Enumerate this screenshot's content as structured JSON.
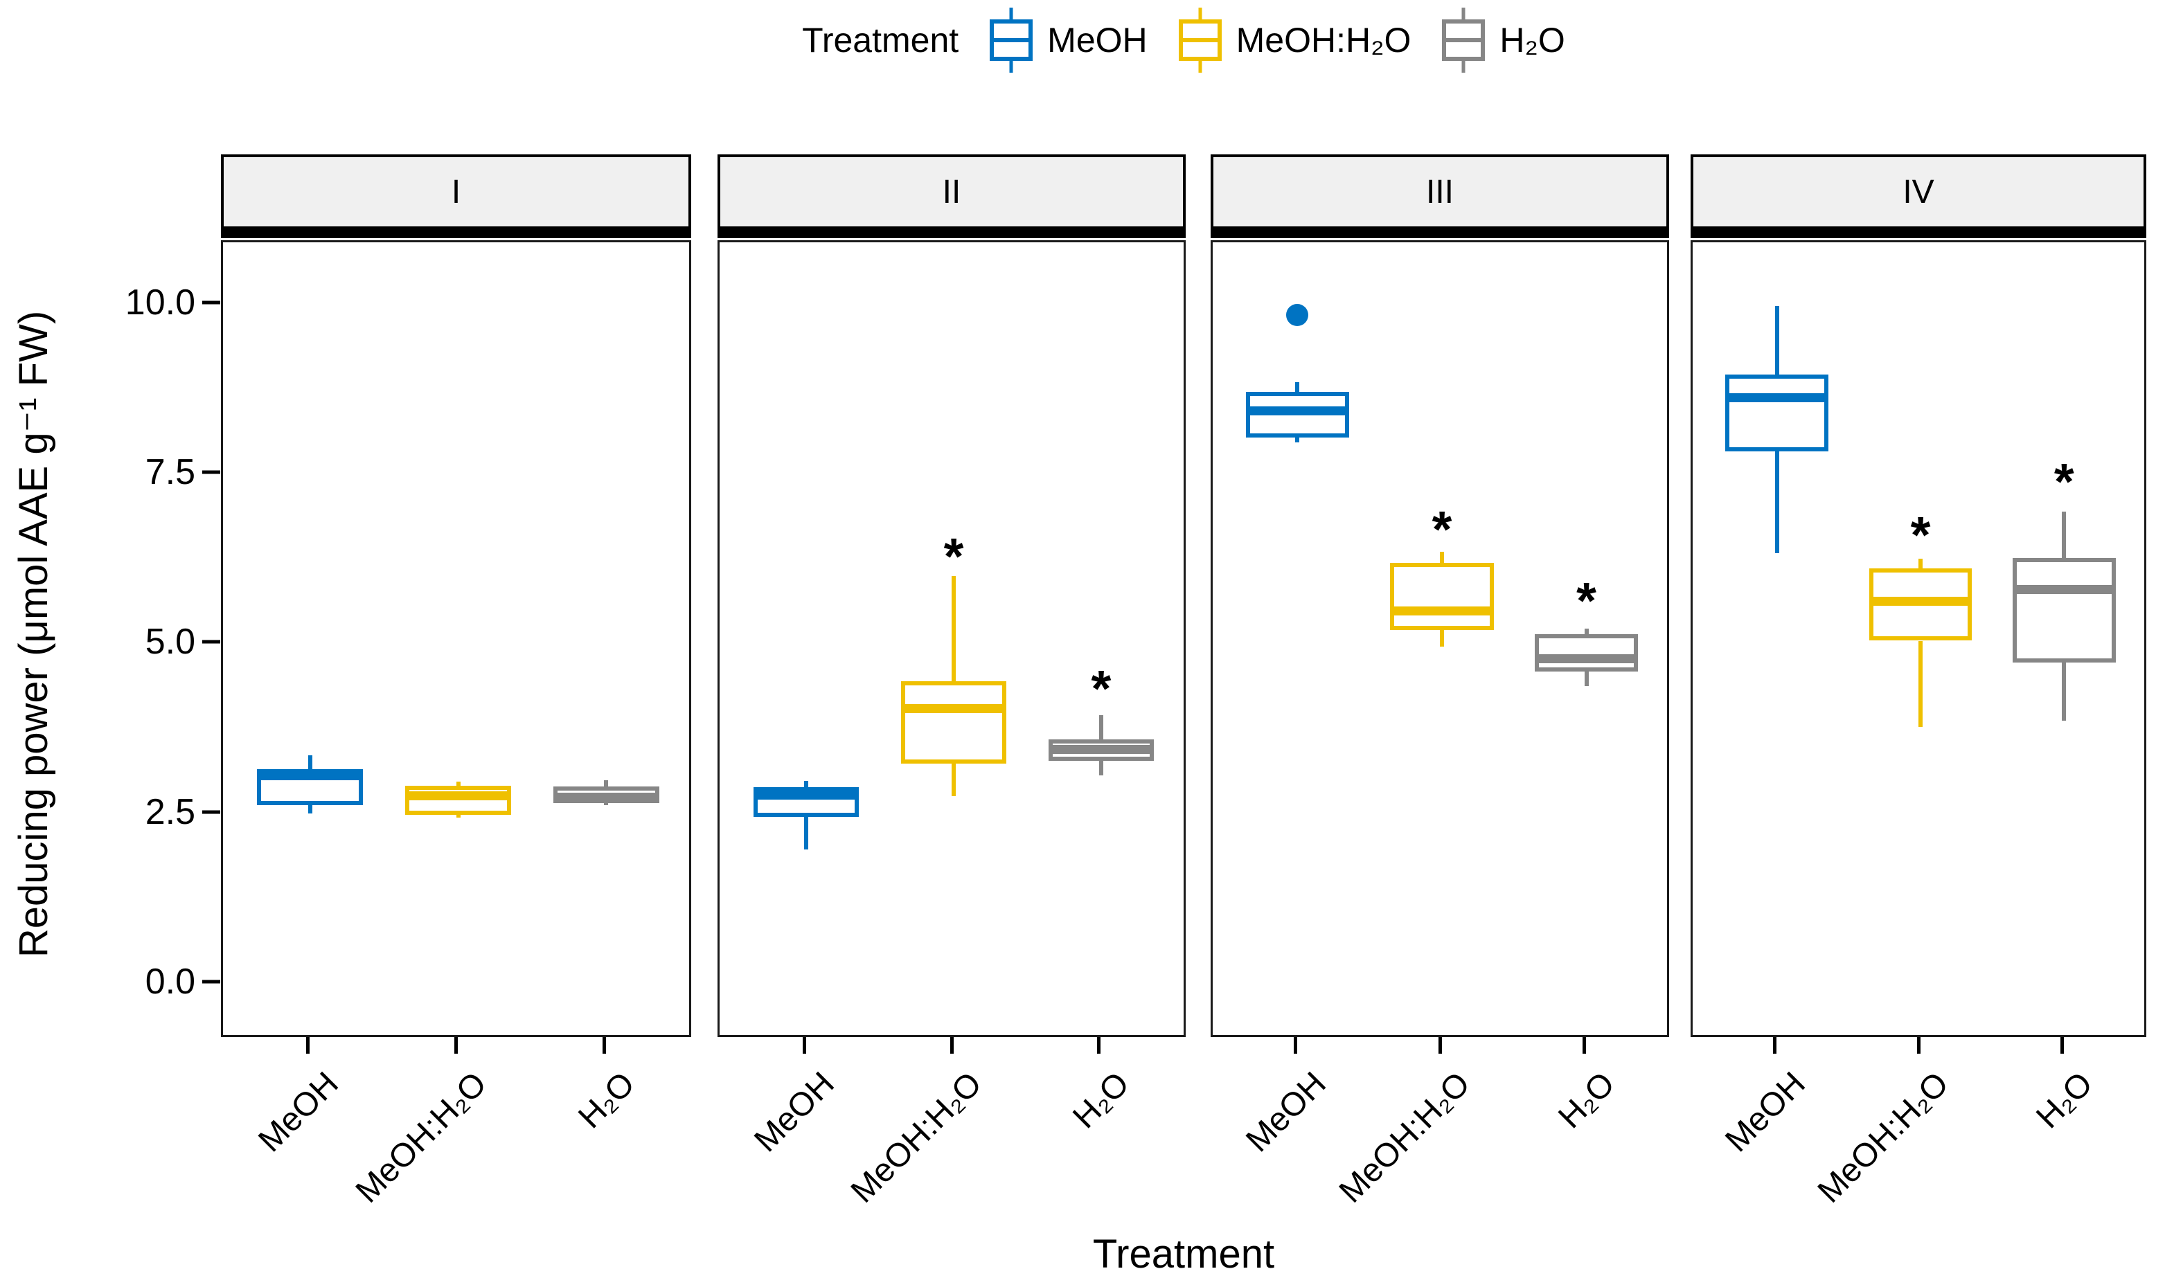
{
  "figure": {
    "background": "#ffffff",
    "legend": {
      "title": "Treatment",
      "items": [
        {
          "label": "MeOH",
          "color": "#0073C2"
        },
        {
          "label": "MeOH:H₂O",
          "color": "#EFC000"
        },
        {
          "label": "H₂O",
          "color": "#868686"
        }
      ]
    },
    "y_axis": {
      "label": "Reducing power (μmol AAE g⁻¹ FW)",
      "ticks": [
        {
          "label": "0.0",
          "value": 0.0
        },
        {
          "label": "2.5",
          "value": 2.5
        },
        {
          "label": "5.0",
          "value": 5.0
        },
        {
          "label": "7.5",
          "value": 7.5
        },
        {
          "label": "10.0",
          "value": 10.0
        }
      ],
      "range": [
        -0.82,
        10.92
      ]
    },
    "x_axis": {
      "title": "Treatment",
      "categories": [
        "MeOH",
        "MeOH:H₂O",
        "H₂O"
      ]
    }
  },
  "chart_data": {
    "type": "boxplot",
    "title": "",
    "xlabel": "Treatment",
    "ylabel": "Reducing power (μmol AAE g⁻¹ FW)",
    "ylim": [
      -0.82,
      10.92
    ],
    "grid": false,
    "legend_position": "top",
    "facets": [
      {
        "label": "I",
        "boxes": [
          {
            "treatment": "MeOH",
            "color": "#0073C2",
            "whisker_low": 2.5,
            "q1": 2.63,
            "median": 3.06,
            "q3": 3.16,
            "whisker_high": 3.36,
            "outliers": [],
            "significance": ""
          },
          {
            "treatment": "MeOH:H₂O",
            "color": "#EFC000",
            "whisker_low": 2.44,
            "q1": 2.48,
            "median": 2.77,
            "q3": 2.91,
            "whisker_high": 2.97,
            "outliers": [],
            "significance": ""
          },
          {
            "treatment": "H₂O",
            "color": "#868686",
            "whisker_low": 2.63,
            "q1": 2.66,
            "median": 2.74,
            "q3": 2.9,
            "whisker_high": 2.99,
            "outliers": [],
            "significance": ""
          }
        ]
      },
      {
        "label": "II",
        "boxes": [
          {
            "treatment": "MeOH",
            "color": "#0073C2",
            "whisker_low": 1.97,
            "q1": 2.45,
            "median": 2.78,
            "q3": 2.89,
            "whisker_high": 2.98,
            "outliers": [],
            "significance": ""
          },
          {
            "treatment": "MeOH:H₂O",
            "color": "#EFC000",
            "whisker_low": 2.76,
            "q1": 3.24,
            "median": 4.05,
            "q3": 4.45,
            "whisker_high": 6.0,
            "outliers": [],
            "significance": "*",
            "significance_y": 6.4
          },
          {
            "treatment": "H₂O",
            "color": "#868686",
            "whisker_low": 3.07,
            "q1": 3.28,
            "median": 3.45,
            "q3": 3.6,
            "whisker_high": 3.95,
            "outliers": [],
            "significance": "*",
            "significance_y": 4.45
          }
        ]
      },
      {
        "label": "III",
        "boxes": [
          {
            "treatment": "MeOH",
            "color": "#0073C2",
            "whisker_low": 7.97,
            "q1": 8.04,
            "median": 8.44,
            "q3": 8.72,
            "whisker_high": 8.86,
            "outliers": [
              9.85
            ],
            "significance": ""
          },
          {
            "treatment": "MeOH:H₂O",
            "color": "#EFC000",
            "whisker_low": 4.96,
            "q1": 5.21,
            "median": 5.49,
            "q3": 6.2,
            "whisker_high": 6.36,
            "outliers": [],
            "significance": "*",
            "significance_y": 6.8
          },
          {
            "treatment": "H₂O",
            "color": "#868686",
            "whisker_low": 4.38,
            "q1": 4.6,
            "median": 4.78,
            "q3": 5.15,
            "whisker_high": 5.23,
            "outliers": [],
            "significance": "*",
            "significance_y": 5.75
          }
        ]
      },
      {
        "label": "IV",
        "boxes": [
          {
            "treatment": "MeOH",
            "color": "#0073C2",
            "whisker_low": 6.34,
            "q1": 7.84,
            "median": 8.63,
            "q3": 8.97,
            "whisker_high": 9.98,
            "outliers": [],
            "significance": ""
          },
          {
            "treatment": "MeOH:H₂O",
            "color": "#EFC000",
            "whisker_low": 3.78,
            "q1": 5.05,
            "median": 5.63,
            "q3": 6.12,
            "whisker_high": 6.26,
            "outliers": [],
            "significance": "*",
            "significance_y": 6.72
          },
          {
            "treatment": "H₂O",
            "color": "#868686",
            "whisker_low": 3.87,
            "q1": 4.73,
            "median": 5.8,
            "q3": 6.27,
            "whisker_high": 6.95,
            "outliers": [],
            "significance": "*",
            "significance_y": 7.5
          }
        ]
      }
    ]
  }
}
